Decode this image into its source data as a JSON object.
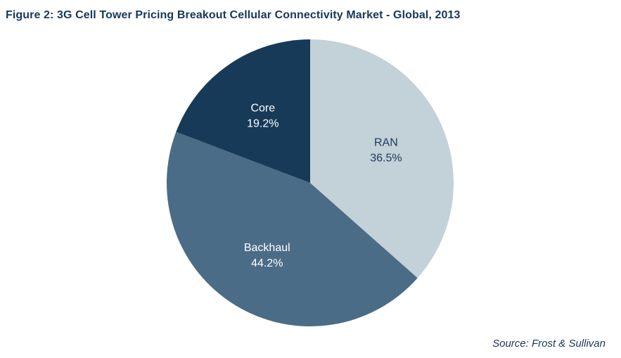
{
  "chart_data": {
    "type": "pie",
    "title": "Figure 2: 3G Cell Tower Pricing Breakout Cellular Connectivity Market - Global, 2013",
    "slices": [
      {
        "name": "RAN",
        "value": 36.5,
        "label": "36.5%",
        "color": "#c3d1d8",
        "text_color": "#1b3a57"
      },
      {
        "name": "Backhaul",
        "value": 44.2,
        "label": "44.2%",
        "color": "#4b6c86",
        "text_color": "#ffffff"
      },
      {
        "name": "Core",
        "value": 19.2,
        "label": "19.2%",
        "color": "#173a59",
        "text_color": "#ffffff"
      }
    ],
    "start_angle_deg": 0,
    "direction": "clockwise",
    "source": "Source: Frost & Sullivan"
  }
}
